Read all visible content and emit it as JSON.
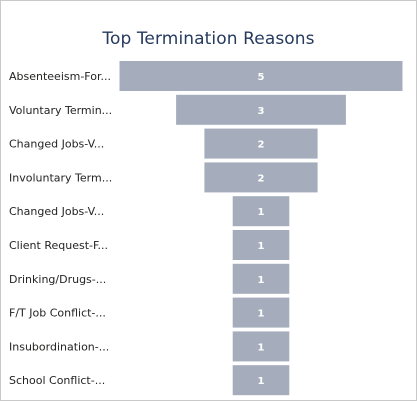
{
  "chart_data": {
    "type": "funnel",
    "title": "Top Termination Reasons",
    "categories": [
      "Absenteeism-For...",
      "Voluntary Termin...",
      "Changed Jobs-V...",
      "Involuntary Term...",
      "Changed Jobs-V...",
      "Client Request-F...",
      "Drinking/Drugs-...",
      "F/T Job Conflict-...",
      "Insubordination-...",
      "School Conflict-..."
    ],
    "values": [
      5,
      3,
      2,
      2,
      1,
      1,
      1,
      1,
      1,
      1
    ],
    "bar_color": "#a5adbc",
    "title_color": "#253a5e"
  }
}
